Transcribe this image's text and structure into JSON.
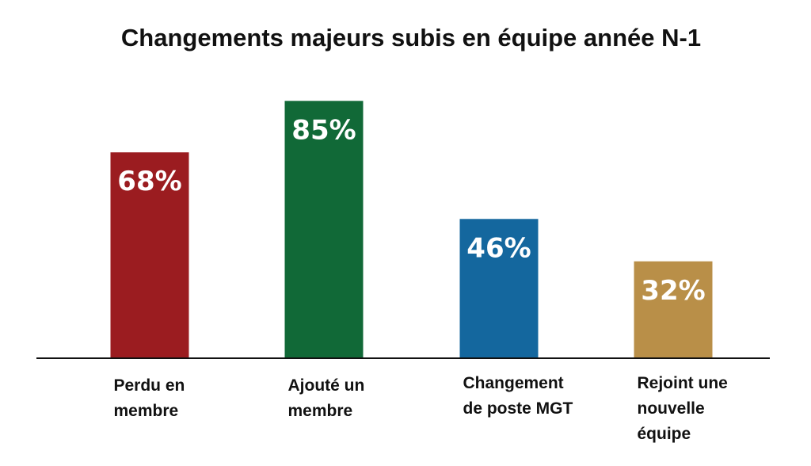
{
  "chart_data": {
    "type": "bar",
    "title": "Changements majeurs subis en équipe année N-1",
    "xlabel": "",
    "ylabel": "",
    "ylim": [
      0,
      100
    ],
    "grid": false,
    "legend": "none",
    "categories": [
      "Perdu en membre",
      "Ajouté un membre",
      "Changement de poste MGT",
      "Rejoint une nouvelle équipe"
    ],
    "category_lines": [
      [
        "Perdu en",
        "membre"
      ],
      [
        "Ajouté un",
        "membre"
      ],
      [
        "Changement",
        "de poste MGT"
      ],
      [
        "Rejoint une",
        "nouvelle",
        "équipe"
      ]
    ],
    "values": [
      68,
      85,
      46,
      32
    ],
    "value_labels": [
      "68%",
      "85%",
      "46%",
      "32%"
    ],
    "colors": [
      "#9b1c20",
      "#116937",
      "#14679e",
      "#b98f48"
    ],
    "axis_color": "#111111"
  }
}
